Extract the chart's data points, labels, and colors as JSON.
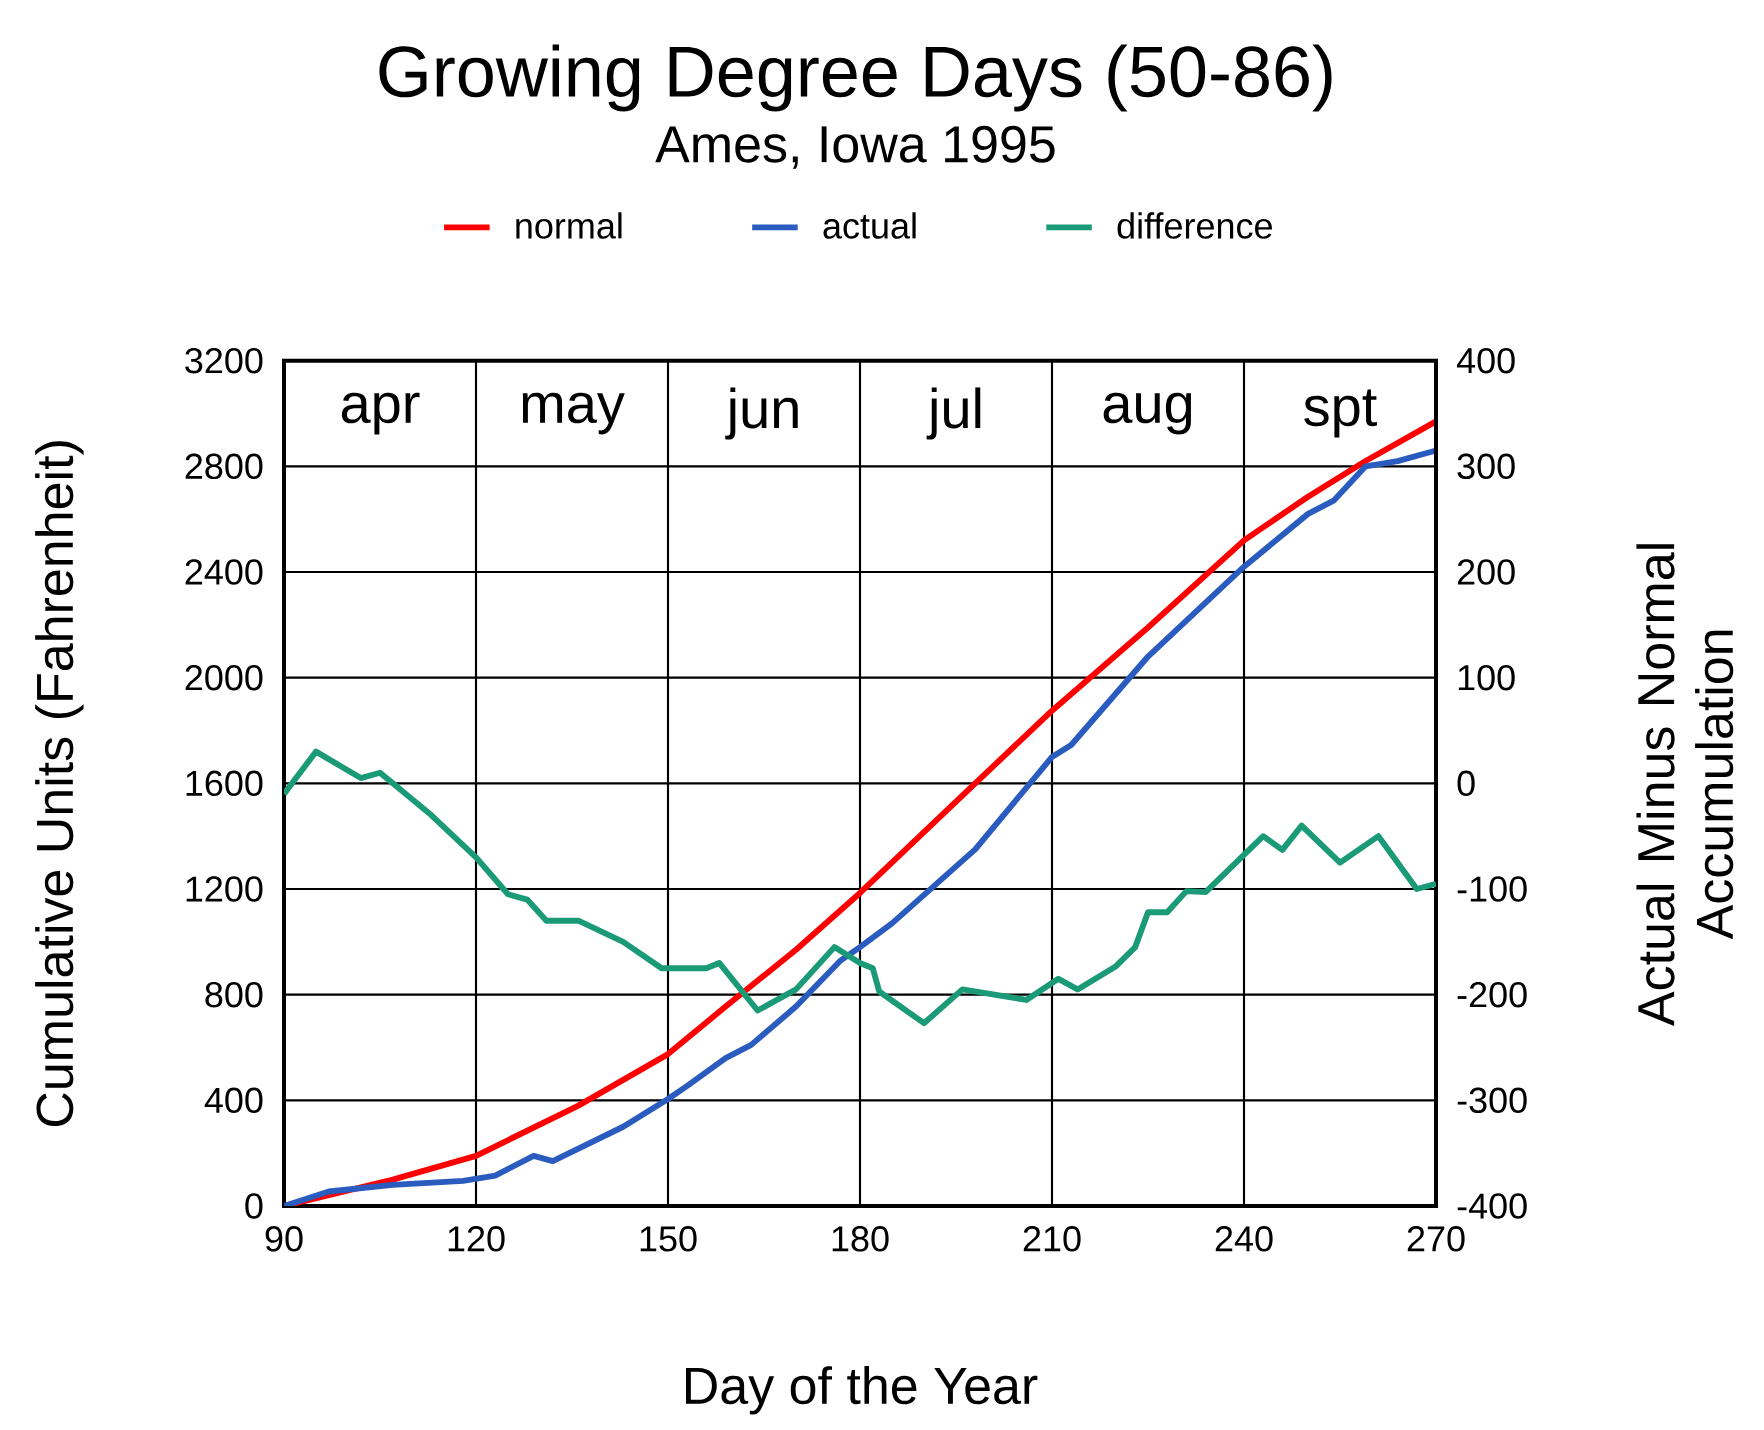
{
  "chart_data": {
    "type": "line",
    "title": "Growing Degree Days  (50-86)",
    "subtitle": "Ames, Iowa    1995",
    "xlabel": "Day of the Year",
    "ylabel": "Cumulative Units (Fahrenheit)",
    "y2label": "Actual Minus Normal Accumulation",
    "xlim": [
      90,
      270
    ],
    "xticks": [
      90,
      120,
      150,
      180,
      210,
      240,
      270
    ],
    "ylim": [
      0,
      3200
    ],
    "yticks": [
      0,
      400,
      800,
      1200,
      1600,
      2000,
      2400,
      2800,
      3200
    ],
    "y2lim": [
      -400,
      400
    ],
    "y2ticks": [
      -400,
      -300,
      -200,
      -100,
      0,
      100,
      200,
      300,
      400
    ],
    "grid": true,
    "legend": "top",
    "annotations": [
      "apr",
      "may",
      "jun",
      "jul",
      "aug",
      "spt"
    ],
    "series": [
      {
        "name": "normal",
        "color": "#ff0000",
        "x": [
          90,
          107,
          120,
          136,
          150,
          159,
          170,
          180,
          198,
          210,
          225,
          240,
          250,
          259,
          270
        ],
        "values": [
          0,
          100,
          190,
          380,
          575,
          755,
          970,
          1185,
          1600,
          1875,
          2190,
          2520,
          2685,
          2820,
          2970
        ]
      },
      {
        "name": "actual",
        "color": "#2a5cbf",
        "x": [
          90,
          97,
          107,
          118,
          123,
          129,
          132,
          143,
          150,
          153,
          159,
          163,
          170,
          177,
          180,
          185,
          198,
          210,
          213,
          225,
          240,
          250,
          254,
          259,
          264,
          270
        ],
        "values": [
          0,
          55,
          80,
          95,
          115,
          190,
          170,
          300,
          405,
          455,
          560,
          610,
          755,
          930,
          980,
          1070,
          1350,
          1700,
          1745,
          2080,
          2420,
          2620,
          2670,
          2800,
          2820,
          2860
        ]
      },
      {
        "name": "difference",
        "color": "#1a9a77",
        "axis": "y2",
        "x": [
          90,
          95,
          102,
          105,
          107,
          113,
          120,
          125,
          128,
          131,
          136,
          143,
          149,
          156,
          158,
          164,
          170,
          176,
          180,
          182,
          183,
          190,
          196,
          206,
          211,
          214,
          220,
          223,
          225,
          228,
          231,
          234,
          243,
          246,
          249,
          255,
          261,
          267,
          270
        ],
        "values": [
          -10,
          30,
          5,
          10,
          0,
          -30,
          -70,
          -105,
          -110,
          -130,
          -130,
          -150,
          -175,
          -175,
          -170,
          -215,
          -195,
          -155,
          -170,
          -175,
          -197,
          -227,
          -195,
          -205,
          -185,
          -195,
          -173,
          -155,
          -122,
          -122,
          -102,
          -103,
          -50,
          -63,
          -40,
          -75,
          -50,
          -100,
          -95
        ]
      }
    ]
  }
}
